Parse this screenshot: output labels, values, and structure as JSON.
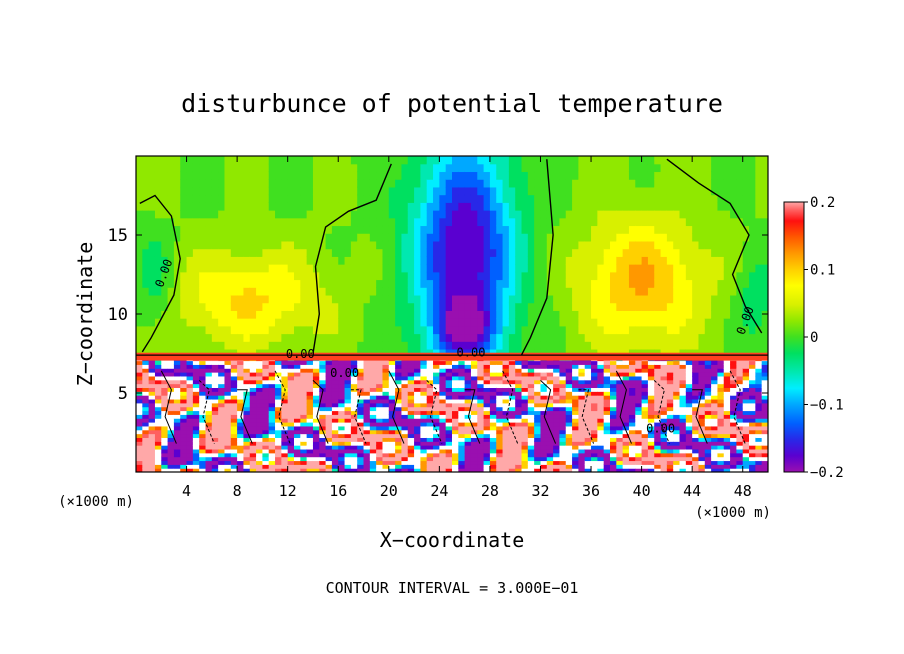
{
  "chart_data": {
    "type": "heatmap",
    "title": "disturbunce of potential temperature",
    "xlabel": "X−coordinate",
    "ylabel": "Z−coordinate",
    "x_unit_left": "(×1000 m)",
    "x_unit_right": "(×1000 m)",
    "footer": "CONTOUR INTERVAL = 3.000E−01",
    "xlim": [
      0,
      50
    ],
    "ylim": [
      0,
      20
    ],
    "x_ticks": [
      4,
      8,
      12,
      16,
      20,
      24,
      28,
      32,
      36,
      40,
      44,
      48
    ],
    "x_tick_labels": [
      "4",
      "8",
      "12",
      "16",
      "20",
      "24",
      "28",
      "32",
      "36",
      "40",
      "44",
      "48"
    ],
    "y_ticks": [
      5,
      10,
      15
    ],
    "y_tick_labels": [
      "5",
      "10",
      "15"
    ],
    "colorbar": {
      "range": [
        -0.2,
        0.2
      ],
      "ticks": [
        0.2,
        0.1,
        0,
        -0.1,
        -0.2
      ],
      "tick_labels": [
        "0.2",
        "0.1",
        "0",
        "−0.1",
        "−0.2"
      ],
      "colors": [
        "#9a0fb0",
        "#5a00d0",
        "#2828e8",
        "#0060ff",
        "#00a8ff",
        "#00eeff",
        "#00e8b0",
        "#00e060",
        "#40e020",
        "#90e800",
        "#d8f000",
        "#ffff00",
        "#ffd000",
        "#ff9800",
        "#ff5800",
        "#ff1010",
        "#ff6060",
        "#ffa8a8"
      ]
    },
    "contour_labels": [
      {
        "text": "0.00",
        "x": 2.5,
        "y": 12.5
      },
      {
        "text": "0.00",
        "x": 13,
        "y": 7.2
      },
      {
        "text": "0.00",
        "x": 16.5,
        "y": 6.0
      },
      {
        "text": "0.00",
        "x": 26.5,
        "y": 7.3
      },
      {
        "text": "0.00",
        "x": 48.5,
        "y": 9.5
      },
      {
        "text": "0.00",
        "x": 41.5,
        "y": 2.5
      }
    ],
    "regions": [
      {
        "x": 26,
        "y": 14,
        "sx": 4,
        "sy": 7,
        "v": -0.18
      },
      {
        "x": 26,
        "y": 9,
        "sx": 2.5,
        "sy": 2,
        "v": -0.1
      },
      {
        "x": 9,
        "y": 11,
        "sx": 6,
        "sy": 3,
        "v": 0.07
      },
      {
        "x": 40,
        "y": 12,
        "sx": 5,
        "sy": 4,
        "v": 0.09
      },
      {
        "x": 1.5,
        "y": 12,
        "sx": 1.5,
        "sy": 3,
        "v": -0.04
      },
      {
        "x": 49,
        "y": 11,
        "sx": 1.5,
        "sy": 3,
        "v": -0.04
      }
    ]
  }
}
